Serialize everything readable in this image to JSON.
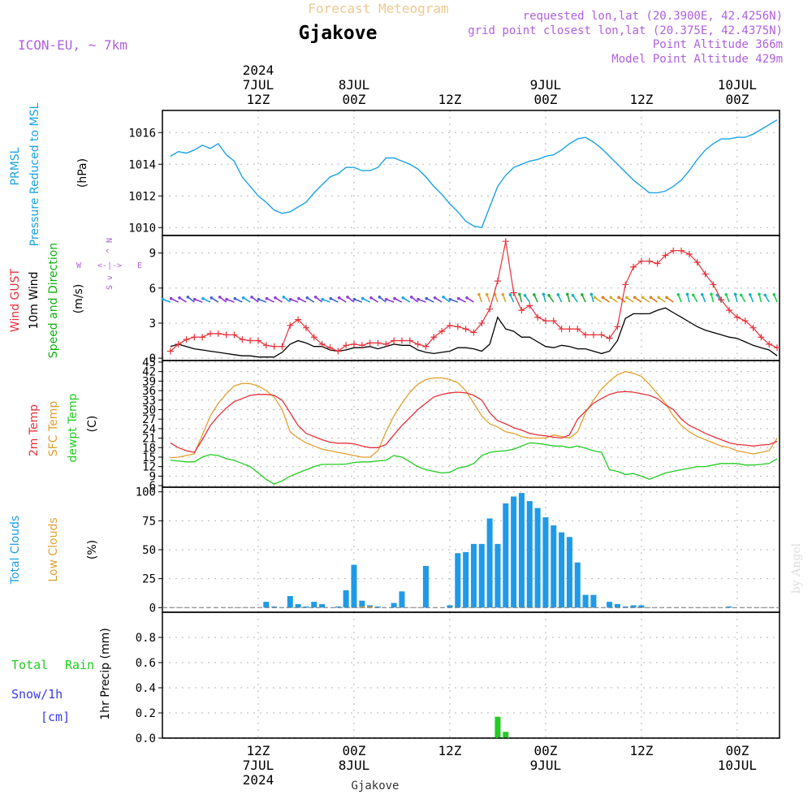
{
  "colors": {
    "pressure": "#1aa3e6",
    "gust": "#e8303a",
    "wind": "#000000",
    "wind_dir_label": "#10b010",
    "temp2m": "#e8303a",
    "sfc": "#e0a030",
    "dew": "#22cc22",
    "clouds": "#1e9ae8",
    "low_clouds": "#e0a030",
    "rain": "#22cc22",
    "snow": "#3a3aee",
    "header_purple": "#b060e0",
    "header_orange": "#f0c890",
    "grid": "#b5b5b5",
    "credit": "#dddddd"
  },
  "header": {
    "title_faint": "Forecast Meteogram",
    "location": "Gjakove",
    "model": "ICON-EU, ~ 7km",
    "requested": "requested lon,lat (20.3900E, 42.4256N)",
    "grid_point": "grid point closest lon,lat (20.375E, 42.4375N)",
    "point_alt": "Point Altitude 366m",
    "model_alt": "Model Point Altitude 429m"
  },
  "top_axis": {
    "year": "2024",
    "ticks": [
      {
        "hour": 12,
        "top": "7JUL",
        "bottom": "12Z"
      },
      {
        "hour": 24,
        "top": "8JUL",
        "bottom": "00Z"
      },
      {
        "hour": 36,
        "top": "",
        "bottom": "12Z"
      },
      {
        "hour": 48,
        "top": "9JUL",
        "bottom": "00Z"
      },
      {
        "hour": 60,
        "top": "",
        "bottom": "12Z"
      },
      {
        "hour": 72,
        "top": "10JUL",
        "bottom": "00Z"
      }
    ]
  },
  "bottom_axis": {
    "year": "2024",
    "ticks": [
      {
        "hour": 12,
        "time": "12Z",
        "date": "7JUL"
      },
      {
        "hour": 24,
        "time": "00Z",
        "date": "8JUL"
      },
      {
        "hour": 36,
        "time": "12Z",
        "date": ""
      },
      {
        "hour": 48,
        "time": "00Z",
        "date": "9JUL"
      },
      {
        "hour": 60,
        "time": "12Z",
        "date": ""
      },
      {
        "hour": 72,
        "time": "00Z",
        "date": "10JUL"
      }
    ],
    "footer": "Gjakove"
  },
  "panel_labels": {
    "pressure_a": "PRMSL",
    "pressure_b": "Pressure Reduced to MSL",
    "pressure_unit": "(hPa)",
    "gust": "Wind GUST",
    "wind": "10m Wind",
    "wind_dir": "Speed and Direction",
    "wind_unit": "(m/s)",
    "compass_n": "N",
    "compass_s": "S",
    "compass_w": "W",
    "compass_e": "E",
    "compass_arrow": "<-|->",
    "compass_up": "^",
    "compass_dn": "v",
    "temp2m": "2m Temp",
    "sfc": "SFC Temp",
    "dew": "dewpt Temp",
    "temp_unit": "(C)",
    "clouds": "Total Clouds",
    "low_clouds": "Low Clouds",
    "clouds_unit": "(%)",
    "rain_a": "Total",
    "rain_b": "Rain",
    "snow": "Snow/1h",
    "snow_unit": "[cm]",
    "precip": "1hr Precip (mm)",
    "credit": "by Angel"
  },
  "chart_data": [
    {
      "type": "line",
      "title": "PRMSL Pressure Reduced to MSL",
      "ylabel": "(hPa)",
      "ylim": [
        1009.5,
        1017.4
      ],
      "yticks": [
        1010,
        1012,
        1014,
        1016
      ],
      "x_unit": "hours from 2024-07-07 00Z",
      "x": [
        1,
        2,
        3,
        4,
        5,
        6,
        7,
        8,
        9,
        10,
        11,
        12,
        13,
        14,
        15,
        16,
        17,
        18,
        19,
        20,
        21,
        22,
        23,
        24,
        25,
        26,
        27,
        28,
        29,
        30,
        31,
        32,
        33,
        34,
        35,
        36,
        37,
        38,
        39,
        40,
        41,
        42,
        43,
        44,
        45,
        46,
        47,
        48,
        49,
        50,
        51,
        52,
        53,
        54,
        55,
        56,
        57,
        58,
        59,
        60,
        61,
        62,
        63,
        64,
        65,
        66,
        67,
        68,
        69,
        70,
        71,
        72,
        73,
        74,
        75,
        76,
        77
      ],
      "series": [
        {
          "name": "PRMSL",
          "values": [
            1014.5,
            1014.8,
            1014.7,
            1014.9,
            1015.2,
            1015.0,
            1015.3,
            1014.6,
            1014.2,
            1013.2,
            1012.6,
            1012.0,
            1011.6,
            1011.1,
            1010.9,
            1011.0,
            1011.3,
            1011.6,
            1012.2,
            1012.7,
            1013.2,
            1013.4,
            1013.8,
            1013.8,
            1013.6,
            1013.6,
            1013.8,
            1014.4,
            1014.4,
            1014.2,
            1014.0,
            1013.7,
            1013.2,
            1012.6,
            1012.1,
            1011.5,
            1011.0,
            1010.4,
            1010.1,
            1010.0,
            1011.3,
            1012.6,
            1013.3,
            1013.8,
            1014.0,
            1014.2,
            1014.3,
            1014.5,
            1014.6,
            1014.9,
            1015.3,
            1015.6,
            1015.7,
            1015.4,
            1015.0,
            1014.5,
            1014.0,
            1013.5,
            1013.0,
            1012.6,
            1012.2,
            1012.2,
            1012.3,
            1012.6,
            1013.0,
            1013.6,
            1014.3,
            1014.9,
            1015.3,
            1015.6,
            1015.6,
            1015.7,
            1015.7,
            1015.9,
            1016.2,
            1016.5,
            1016.8
          ]
        }
      ]
    },
    {
      "type": "line",
      "title": "Wind GUST / 10m Wind Speed and Direction",
      "ylabel": "(m/s)",
      "ylim": [
        -0.2,
        10.5
      ],
      "yticks": [
        0,
        3,
        6,
        9
      ],
      "x_unit": "hours from 2024-07-07 00Z",
      "x": [
        1,
        2,
        3,
        4,
        5,
        6,
        7,
        8,
        9,
        10,
        11,
        12,
        13,
        14,
        15,
        16,
        17,
        18,
        19,
        20,
        21,
        22,
        23,
        24,
        25,
        26,
        27,
        28,
        29,
        30,
        31,
        32,
        33,
        34,
        35,
        36,
        37,
        38,
        39,
        40,
        41,
        42,
        43,
        44,
        45,
        46,
        47,
        48,
        49,
        50,
        51,
        52,
        53,
        54,
        55,
        56,
        57,
        58,
        59,
        60,
        61,
        62,
        63,
        64,
        65,
        66,
        67,
        68,
        69,
        70,
        71,
        72,
        73,
        74,
        75,
        76,
        77
      ],
      "series": [
        {
          "name": "Wind GUST",
          "marker": "+",
          "values": [
            0.6,
            1.2,
            1.6,
            1.8,
            1.8,
            2.1,
            2.1,
            2.0,
            2.0,
            1.6,
            1.5,
            1.5,
            1.1,
            1.0,
            1.0,
            2.8,
            3.3,
            2.6,
            1.8,
            1.2,
            0.9,
            0.6,
            1.1,
            1.2,
            1.1,
            1.3,
            1.3,
            1.2,
            1.5,
            1.5,
            1.5,
            1.2,
            1.0,
            1.8,
            2.3,
            2.8,
            2.7,
            2.5,
            2.2,
            3.0,
            4.2,
            6.6,
            10.0,
            5.6,
            4.1,
            4.5,
            3.5,
            3.2,
            3.2,
            2.5,
            2.5,
            2.5,
            2.0,
            2.0,
            2.0,
            1.7,
            2.7,
            6.3,
            7.8,
            8.3,
            8.3,
            8.1,
            8.8,
            9.2,
            9.2,
            8.9,
            8.2,
            7.2,
            6.3,
            5.0,
            4.1,
            3.5,
            3.2,
            2.6,
            1.8,
            1.2,
            0.9
          ]
        },
        {
          "name": "10m Wind",
          "values": [
            1.0,
            1.2,
            1.0,
            0.8,
            0.7,
            0.6,
            0.5,
            0.4,
            0.3,
            0.2,
            0.2,
            0.1,
            0.1,
            0.1,
            0.5,
            1.2,
            1.5,
            1.3,
            1.0,
            1.0,
            0.7,
            0.6,
            0.7,
            0.9,
            0.9,
            1.0,
            0.8,
            1.0,
            1.2,
            1.1,
            1.1,
            0.7,
            0.5,
            0.4,
            0.5,
            0.6,
            0.9,
            0.9,
            0.8,
            0.6,
            1.2,
            3.5,
            2.5,
            2.3,
            1.8,
            1.8,
            1.4,
            1.0,
            0.9,
            1.1,
            1.0,
            0.8,
            0.8,
            0.6,
            0.4,
            0.6,
            1.5,
            3.4,
            3.8,
            3.8,
            3.8,
            4.1,
            4.3,
            3.9,
            3.5,
            3.1,
            2.7,
            2.4,
            2.2,
            2.0,
            1.8,
            1.7,
            1.4,
            1.1,
            0.9,
            0.7,
            0.2
          ]
        }
      ],
      "wind_direction_barbs": "arrows every hour near 4.5-5 m/s; westerly (purple/blue) flow through day 1, mixed south/southeast (green/orange) during the 9JUL gust peaks"
    },
    {
      "type": "line",
      "title": "2m Temp / SFC Temp / dewpt Temp",
      "ylabel": "(C)",
      "ylim": [
        5.5,
        45.5
      ],
      "yticks": [
        6,
        9,
        12,
        15,
        18,
        21,
        24,
        27,
        30,
        33,
        36,
        39,
        42,
        45
      ],
      "x_unit": "hours from 2024-07-07 00Z",
      "x": [
        1,
        2,
        3,
        4,
        5,
        6,
        7,
        8,
        9,
        10,
        11,
        12,
        13,
        14,
        15,
        16,
        17,
        18,
        19,
        20,
        21,
        22,
        23,
        24,
        25,
        26,
        27,
        28,
        29,
        30,
        31,
        32,
        33,
        34,
        35,
        36,
        37,
        38,
        39,
        40,
        41,
        42,
        43,
        44,
        45,
        46,
        47,
        48,
        49,
        50,
        51,
        52,
        53,
        54,
        55,
        56,
        57,
        58,
        59,
        60,
        61,
        62,
        63,
        64,
        65,
        66,
        67,
        68,
        69,
        70,
        71,
        72,
        73,
        74,
        75,
        76,
        77
      ],
      "series": [
        {
          "name": "2m Temp",
          "values": [
            19.5,
            18.0,
            17.0,
            16.5,
            20.5,
            25.0,
            28.0,
            30.5,
            32.5,
            33.5,
            34.5,
            34.8,
            34.8,
            34.5,
            33.0,
            29.0,
            25.0,
            22.5,
            21.5,
            20.5,
            19.7,
            19.4,
            19.4,
            19.2,
            18.5,
            18.0,
            18.0,
            19.0,
            22.0,
            25.0,
            27.5,
            30.0,
            32.0,
            34.0,
            34.8,
            35.3,
            35.5,
            35.3,
            34.5,
            33.0,
            29.0,
            26.5,
            25.5,
            24.3,
            23.5,
            22.5,
            22.0,
            21.7,
            21.3,
            21.0,
            22.0,
            27.0,
            29.5,
            32.0,
            33.5,
            34.8,
            35.5,
            35.7,
            35.5,
            35.0,
            34.5,
            33.5,
            31.5,
            30.0,
            27.0,
            25.0,
            23.8,
            22.5,
            21.5,
            20.5,
            19.5,
            19.0,
            18.8,
            18.5,
            18.8,
            19.0,
            20.0
          ]
        },
        {
          "name": "SFC Temp",
          "values": [
            14.8,
            15.0,
            15.5,
            16.0,
            22.0,
            28.0,
            32.0,
            35.0,
            37.5,
            38.3,
            38.2,
            37.5,
            36.0,
            34.0,
            30.0,
            23.0,
            21.0,
            19.5,
            18.5,
            17.5,
            17.0,
            16.5,
            16.0,
            15.5,
            15.0,
            15.0,
            17.0,
            23.0,
            28.0,
            32.0,
            35.5,
            38.0,
            39.5,
            40.0,
            40.0,
            39.5,
            38.5,
            36.0,
            32.0,
            28.0,
            25.5,
            24.5,
            23.0,
            22.5,
            21.5,
            21.0,
            21.0,
            21.0,
            22.0,
            21.5,
            21.0,
            23.0,
            29.0,
            33.0,
            36.5,
            39.0,
            41.0,
            42.0,
            41.5,
            40.5,
            38.0,
            35.0,
            32.0,
            28.0,
            25.0,
            23.0,
            21.5,
            20.5,
            19.5,
            18.5,
            18.0,
            17.0,
            16.5,
            16.0,
            16.5,
            17.0,
            21.0
          ]
        },
        {
          "name": "dewpt Temp",
          "values": [
            14.0,
            13.8,
            13.5,
            13.5,
            15.0,
            15.8,
            15.5,
            14.5,
            14.0,
            13.0,
            12.0,
            10.0,
            8.0,
            6.5,
            7.5,
            9.0,
            10.0,
            11.0,
            12.0,
            12.7,
            12.7,
            12.7,
            12.8,
            13.3,
            13.5,
            13.5,
            13.8,
            14.0,
            15.5,
            15.0,
            13.5,
            12.0,
            11.0,
            10.5,
            10.0,
            10.2,
            11.5,
            12.0,
            13.0,
            15.5,
            16.5,
            16.8,
            17.0,
            17.5,
            18.5,
            19.5,
            19.3,
            19.0,
            18.5,
            18.5,
            18.0,
            18.5,
            17.8,
            17.0,
            16.5,
            11.0,
            10.5,
            9.5,
            9.8,
            9.0,
            8.0,
            9.0,
            10.0,
            10.5,
            11.0,
            11.5,
            12.0,
            12.0,
            12.5,
            13.0,
            13.0,
            13.0,
            12.5,
            12.5,
            12.7,
            13.0,
            14.5
          ]
        }
      ]
    },
    {
      "type": "bar",
      "title": "Total Clouds / Low Clouds",
      "ylabel": "(%)",
      "ylim": [
        -4,
        104
      ],
      "yticks": [
        0,
        25,
        50,
        75,
        100
      ],
      "x_unit": "hours from 2024-07-07 00Z",
      "x": [
        1,
        2,
        3,
        4,
        5,
        6,
        7,
        8,
        9,
        10,
        11,
        12,
        13,
        14,
        15,
        16,
        17,
        18,
        19,
        20,
        21,
        22,
        23,
        24,
        25,
        26,
        27,
        28,
        29,
        30,
        31,
        32,
        33,
        34,
        35,
        36,
        37,
        38,
        39,
        40,
        41,
        42,
        43,
        44,
        45,
        46,
        47,
        48,
        49,
        50,
        51,
        52,
        53,
        54,
        55,
        56,
        57,
        58,
        59,
        60,
        61,
        62,
        63,
        64,
        65,
        66,
        67,
        68,
        69,
        70,
        71,
        72,
        73,
        74,
        75,
        76,
        77
      ],
      "series": [
        {
          "name": "Total Clouds",
          "values": [
            0,
            0,
            0,
            0,
            0,
            0,
            0,
            0,
            0,
            0,
            0,
            0,
            5,
            1,
            0,
            10,
            3,
            1,
            5,
            3,
            0,
            1,
            15,
            37,
            6,
            2,
            1,
            0,
            4,
            14,
            0,
            0,
            36,
            0,
            0,
            2,
            47,
            48,
            55,
            55,
            77,
            55,
            90,
            96,
            99,
            92,
            86,
            78,
            71,
            65,
            61,
            39,
            11,
            11,
            0,
            5,
            3,
            1,
            2,
            2,
            0,
            0,
            0,
            0,
            0,
            0,
            0,
            0,
            0,
            0,
            1,
            0,
            0,
            0,
            0,
            0,
            0
          ]
        },
        {
          "name": "Low Clouds",
          "values": [
            0,
            0,
            0,
            0,
            0,
            0,
            0,
            0,
            0,
            0,
            0,
            0,
            0,
            0,
            0,
            0,
            0,
            0,
            0,
            0,
            0,
            0,
            0,
            0,
            1,
            1,
            0,
            0,
            0,
            0,
            0,
            0,
            0,
            0,
            0,
            0,
            0,
            0,
            0,
            0,
            0,
            0,
            0,
            0,
            0,
            0,
            0,
            0,
            0,
            0,
            0,
            0,
            0,
            0,
            0,
            0,
            0,
            0,
            0,
            0,
            0,
            0,
            0,
            0,
            0,
            0,
            0,
            0,
            0,
            0,
            0,
            0,
            0,
            0,
            0,
            0,
            0
          ]
        }
      ]
    },
    {
      "type": "bar",
      "title": "Total Rain / Snow 1hr Precip",
      "ylabel": "1hr Precip (mm)",
      "ylim": [
        0,
        1.0
      ],
      "yticks": [
        0,
        0.2,
        0.4,
        0.6,
        0.8
      ],
      "x_unit": "hours from 2024-07-07 00Z",
      "series": [
        {
          "name": "Total Rain",
          "x": [
            42,
            43
          ],
          "values": [
            0.17,
            0.05
          ]
        },
        {
          "name": "Snow/1h",
          "x": [],
          "values": []
        }
      ]
    }
  ]
}
